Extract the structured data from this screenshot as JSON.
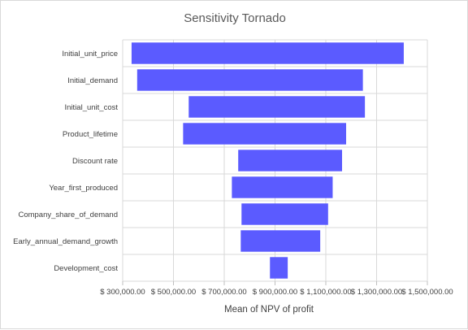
{
  "chart_data": {
    "type": "bar",
    "orientation": "horizontal",
    "title": "Sensitivity Tornado",
    "xlabel": "Mean of NPV of profit",
    "ylabel": "",
    "xlim": [
      300000,
      1500000
    ],
    "x_ticks": [
      300000,
      500000,
      700000,
      900000,
      1100000,
      1300000,
      1500000
    ],
    "x_tick_labels": [
      "$ 300,000.00",
      "$ 500,000.00",
      "$ 700,000.00",
      "$ 900,000.00",
      "$ 1,100,000.00",
      "$ 1,300,000.00",
      "$ 1,500,000.00"
    ],
    "grid": true,
    "bar_color": "#5b5bff",
    "categories": [
      "Initial_unit_price",
      "Initial_demand",
      "Initial_unit_cost",
      "Product_lifetime",
      "Discount rate",
      "Year_first_produced",
      "Company_share_of_demand",
      "Early_annual_demand_growth",
      "Development_cost"
    ],
    "ranges": [
      [
        335000,
        1407000
      ],
      [
        357000,
        1246000
      ],
      [
        560000,
        1254000
      ],
      [
        538000,
        1180000
      ],
      [
        755000,
        1164000
      ],
      [
        730000,
        1127000
      ],
      [
        768000,
        1109000
      ],
      [
        765000,
        1078000
      ],
      [
        880000,
        950000
      ]
    ]
  }
}
